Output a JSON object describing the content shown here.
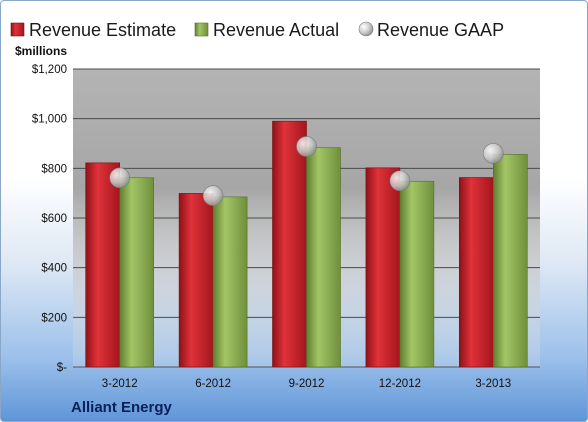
{
  "company": "Alliant Energy",
  "chart_data": {
    "type": "bar",
    "categories": [
      "3-2012",
      "6-2012",
      "9-2012",
      "12-2012",
      "3-2013"
    ],
    "series": [
      {
        "name": "Revenue Estimate",
        "values": [
          822,
          699,
          990,
          802,
          763
        ],
        "color": "#c8232b",
        "kind": "bar"
      },
      {
        "name": "Revenue Actual",
        "values": [
          762,
          685,
          883,
          748,
          856
        ],
        "color": "#8db54f",
        "kind": "bar"
      },
      {
        "name": "Revenue GAAP",
        "values": [
          762,
          690,
          888,
          750,
          860
        ],
        "color": "#bfbfbf",
        "kind": "marker"
      }
    ],
    "ylabel": "$millions",
    "ylim": [
      0,
      1200
    ],
    "yticks": [
      0,
      200,
      400,
      600,
      800,
      1000,
      1200
    ],
    "ytick_labels": [
      "$-",
      "$200",
      "$400",
      "$600",
      "$800",
      "$1,000",
      "$1,200"
    ],
    "grid": true,
    "legend_position": "top"
  }
}
